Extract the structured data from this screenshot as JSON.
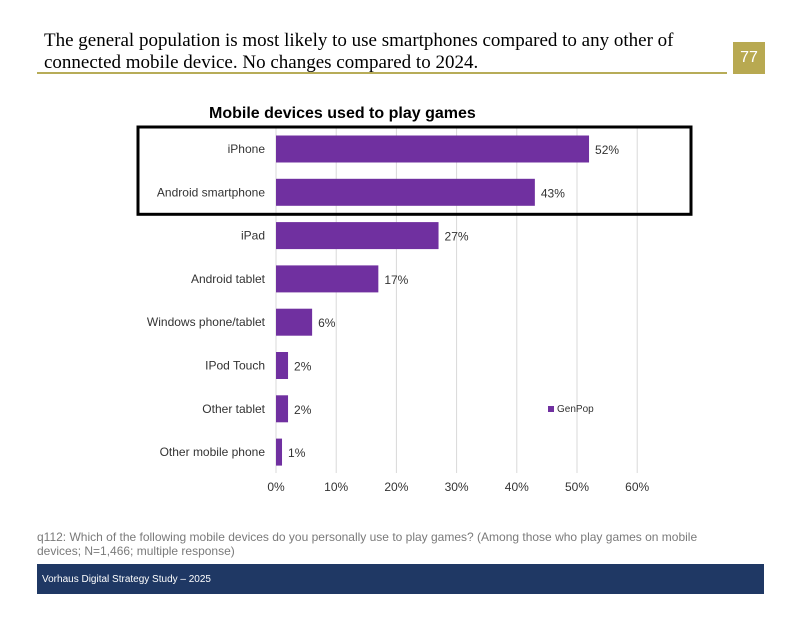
{
  "headline": "The general population is most likely to use smartphones compared to any other of connected mobile device. No changes compared to 2024.",
  "page_number": "77",
  "footnote": "q112: Which of the following mobile devices do you personally use to play games? (Among those who play games on mobile devices; N=1,466; multiple response)",
  "footer": "Vorhaus Digital Strategy Study – 2025",
  "colors": {
    "bar": "#7030a0",
    "accent": "#b8a951",
    "footer": "#1f3864"
  },
  "chart_data": {
    "type": "bar",
    "orientation": "horizontal",
    "title": "Mobile devices used to play games",
    "categories": [
      "iPhone",
      "Android smartphone",
      "iPad",
      "Android tablet",
      "Windows phone/tablet",
      "IPod Touch",
      "Other tablet",
      "Other mobile phone"
    ],
    "series": [
      {
        "name": "GenPop",
        "values": [
          52,
          43,
          27,
          17,
          6,
          2,
          2,
          1
        ],
        "labels": [
          "52%",
          "43%",
          "27%",
          "17%",
          "6%",
          "2%",
          "2%",
          "1%"
        ]
      }
    ],
    "ticks": [
      "0%",
      "10%",
      "20%",
      "30%",
      "40%",
      "50%",
      "60%"
    ],
    "xlim": [
      0,
      60
    ],
    "xlabel": "",
    "ylabel": "",
    "highlighted_categories": [
      "iPhone",
      "Android smartphone"
    ],
    "legend_position": "right"
  }
}
